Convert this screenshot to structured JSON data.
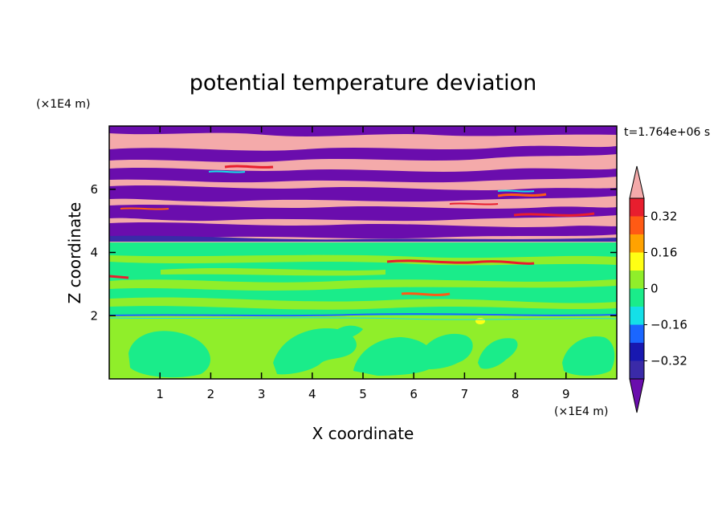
{
  "chart_data": {
    "type": "heatmap",
    "title": "potential temperature deviation",
    "xlabel": "X coordinate",
    "ylabel": "Z coordinate",
    "x_units": "(×1E4 m)",
    "y_units": "(×1E4 m)",
    "time_label": "t=1.764e+06 s",
    "xlim": [
      0,
      10
    ],
    "ylim": [
      0,
      8
    ],
    "x_ticks": [
      1,
      2,
      3,
      4,
      5,
      6,
      7,
      8,
      9
    ],
    "y_ticks": [
      2,
      4,
      6
    ],
    "x_tick_labels": [
      "1",
      "2",
      "3",
      "4",
      "5",
      "6",
      "7",
      "8",
      "9"
    ],
    "y_tick_labels": [
      "2",
      "4",
      "6"
    ],
    "colorbar": {
      "levels": [
        -0.4,
        -0.32,
        -0.24,
        -0.16,
        -0.08,
        0,
        0.08,
        0.16,
        0.24,
        0.32,
        0.4
      ],
      "tick_values": [
        -0.32,
        -0.16,
        0,
        0.16,
        0.32
      ],
      "tick_labels": [
        "−0.32",
        "−0.16",
        "0",
        "0.16",
        "0.32"
      ],
      "colors": [
        "#6a0dad",
        "#3a2aa8",
        "#1818b0",
        "#1a66ff",
        "#14e0e8",
        "#1aec8a",
        "#90ee2a",
        "#ffff14",
        "#ffa200",
        "#ff5a14",
        "#e81e2e",
        "#f4aaaa"
      ],
      "extend": "both"
    },
    "regions": [
      {
        "z_range": [
          0,
          2.0
        ],
        "dominant_value": 0.04,
        "note": "light green with embedded near-zero eddies"
      },
      {
        "z_range": [
          2.0,
          2.05
        ],
        "dominant_value": -0.2,
        "note": "thin blue line"
      },
      {
        "z_range": [
          2.05,
          4.3
        ],
        "dominant_value": 0.0,
        "note": "green with layered lighter green bands"
      },
      {
        "z_range": [
          4.3,
          8.0
        ],
        "dominant_value_pos": 0.44,
        "dominant_value_neg": -0.44,
        "note": "alternating pink and purple layers"
      }
    ]
  }
}
